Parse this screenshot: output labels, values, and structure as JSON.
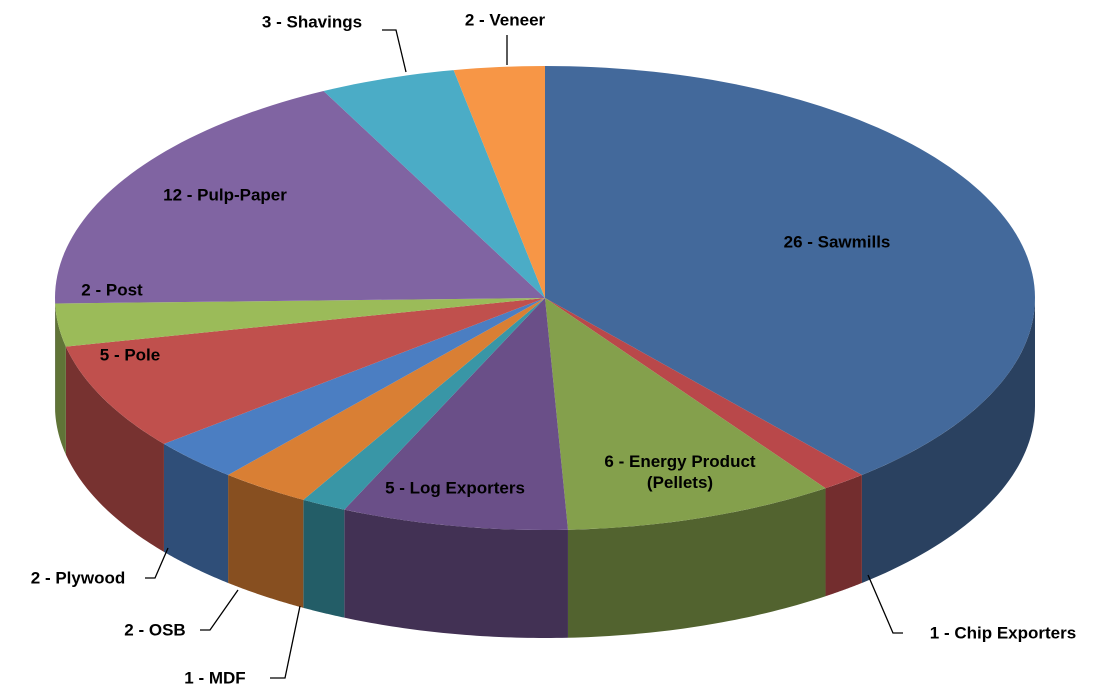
{
  "chart_data": {
    "type": "pie3d",
    "values": [
      26,
      1,
      6,
      5,
      1,
      2,
      2,
      5,
      2,
      12,
      3,
      2
    ],
    "value_labels": [
      "26 - Sawmills",
      "1 - Chip Exporters",
      "6 - Energy Product (Pellets)",
      "5 - Log Exporters",
      "1 - MDF",
      "2 - OSB",
      "2 - Plywood",
      "5 - Pole",
      "2 - Post",
      "12 - Pulp-Paper",
      "3 - Shavings",
      "2 - Veneer"
    ],
    "colors": [
      "#43699b",
      "#b9484a",
      "#84a04c",
      "#6a4f88",
      "#3996a6",
      "#d97f34",
      "#4b7ec2",
      "#c0504d",
      "#9bbb59",
      "#8064a2",
      "#4bacc6",
      "#f79646"
    ]
  }
}
